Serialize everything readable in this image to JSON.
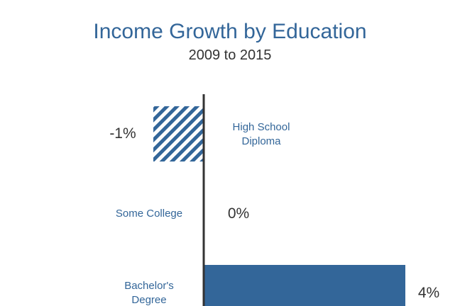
{
  "chart_data": {
    "type": "bar",
    "orientation": "horizontal",
    "title": "Income Growth by Education",
    "subtitle": "2009 to 2015",
    "categories": [
      "High School\nDiploma",
      "Some College",
      "Bachelor's\nDegree"
    ],
    "values": [
      -1,
      0,
      4
    ],
    "value_labels": [
      "-1%",
      "0%",
      "4%"
    ],
    "xlim": [
      -1.2,
      4.2
    ],
    "grid": false,
    "colors": {
      "bar": "#336699",
      "text": "#333333",
      "label": "#336699",
      "axis": "#333333"
    },
    "negative_fill": "diagonal-stripes"
  }
}
